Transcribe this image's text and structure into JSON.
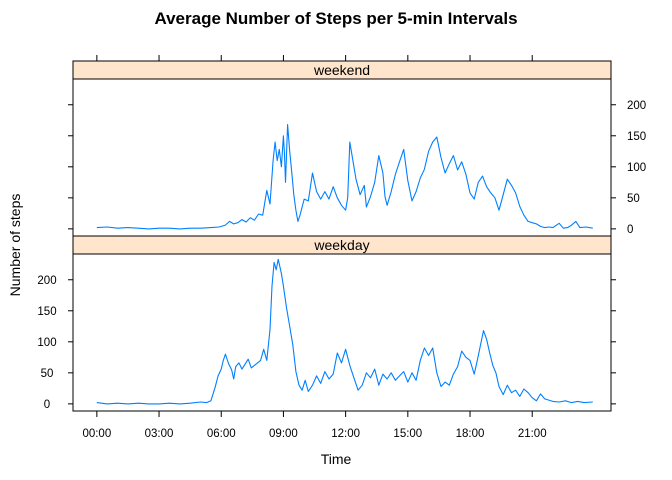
{
  "chart_data": {
    "type": "line",
    "title": "Average Number of Steps per 5-min Intervals",
    "xlabel": "Time",
    "ylabel": "Number of steps",
    "x_unit": "hours",
    "xlim": [
      -1.15,
      24.8
    ],
    "ylim": [
      -11.5,
      241.5
    ],
    "x_ticks": [
      0,
      3,
      6,
      9,
      12,
      15,
      18,
      21
    ],
    "x_tick_labels": [
      "00:00",
      "03:00",
      "06:00",
      "09:00",
      "12:00",
      "15:00",
      "18:00",
      "21:00"
    ],
    "y_ticks": [
      0,
      50,
      100,
      150,
      200
    ],
    "y_tick_labels": [
      "0",
      "50",
      "100",
      "150",
      "200"
    ],
    "line_color": "#0080ff",
    "strip_color": "#ffe5cc",
    "panels": [
      {
        "name": "weekend",
        "points": [
          [
            0.0,
            2
          ],
          [
            0.5,
            3
          ],
          [
            1.0,
            1
          ],
          [
            1.5,
            2
          ],
          [
            2.0,
            1
          ],
          [
            2.5,
            0
          ],
          [
            3.0,
            1
          ],
          [
            3.5,
            1
          ],
          [
            4.0,
            0
          ],
          [
            4.5,
            1
          ],
          [
            5.0,
            1
          ],
          [
            5.5,
            2
          ],
          [
            5.9,
            3
          ],
          [
            6.2,
            6
          ],
          [
            6.4,
            12
          ],
          [
            6.6,
            8
          ],
          [
            6.8,
            10
          ],
          [
            7.0,
            15
          ],
          [
            7.2,
            11
          ],
          [
            7.4,
            18
          ],
          [
            7.6,
            14
          ],
          [
            7.8,
            24
          ],
          [
            8.0,
            22
          ],
          [
            8.2,
            62
          ],
          [
            8.35,
            40
          ],
          [
            8.5,
            110
          ],
          [
            8.6,
            140
          ],
          [
            8.7,
            110
          ],
          [
            8.8,
            128
          ],
          [
            8.9,
            100
          ],
          [
            9.0,
            150
          ],
          [
            9.05,
            120
          ],
          [
            9.1,
            75
          ],
          [
            9.2,
            168
          ],
          [
            9.3,
            125
          ],
          [
            9.4,
            92
          ],
          [
            9.5,
            55
          ],
          [
            9.6,
            30
          ],
          [
            9.7,
            12
          ],
          [
            9.8,
            22
          ],
          [
            9.9,
            35
          ],
          [
            10.0,
            48
          ],
          [
            10.2,
            45
          ],
          [
            10.4,
            90
          ],
          [
            10.6,
            60
          ],
          [
            10.8,
            48
          ],
          [
            11.0,
            60
          ],
          [
            11.2,
            48
          ],
          [
            11.4,
            68
          ],
          [
            11.6,
            50
          ],
          [
            11.8,
            38
          ],
          [
            12.0,
            30
          ],
          [
            12.1,
            50
          ],
          [
            12.2,
            140
          ],
          [
            12.35,
            110
          ],
          [
            12.5,
            80
          ],
          [
            12.7,
            55
          ],
          [
            12.9,
            70
          ],
          [
            13.0,
            35
          ],
          [
            13.2,
            52
          ],
          [
            13.4,
            75
          ],
          [
            13.6,
            118
          ],
          [
            13.8,
            90
          ],
          [
            13.9,
            52
          ],
          [
            14.0,
            38
          ],
          [
            14.2,
            60
          ],
          [
            14.4,
            88
          ],
          [
            14.6,
            108
          ],
          [
            14.8,
            128
          ],
          [
            15.0,
            78
          ],
          [
            15.2,
            45
          ],
          [
            15.4,
            60
          ],
          [
            15.6,
            82
          ],
          [
            15.8,
            96
          ],
          [
            16.0,
            125
          ],
          [
            16.2,
            140
          ],
          [
            16.4,
            148
          ],
          [
            16.6,
            115
          ],
          [
            16.8,
            90
          ],
          [
            17.0,
            105
          ],
          [
            17.2,
            118
          ],
          [
            17.4,
            95
          ],
          [
            17.6,
            108
          ],
          [
            17.8,
            88
          ],
          [
            18.0,
            58
          ],
          [
            18.2,
            48
          ],
          [
            18.4,
            75
          ],
          [
            18.6,
            85
          ],
          [
            18.8,
            68
          ],
          [
            19.0,
            58
          ],
          [
            19.2,
            50
          ],
          [
            19.4,
            30
          ],
          [
            19.6,
            55
          ],
          [
            19.8,
            80
          ],
          [
            20.0,
            70
          ],
          [
            20.2,
            58
          ],
          [
            20.4,
            36
          ],
          [
            20.6,
            22
          ],
          [
            20.8,
            12
          ],
          [
            21.0,
            10
          ],
          [
            21.2,
            8
          ],
          [
            21.4,
            4
          ],
          [
            21.6,
            2
          ],
          [
            21.8,
            3
          ],
          [
            22.0,
            2
          ],
          [
            22.3,
            9
          ],
          [
            22.5,
            1
          ],
          [
            22.7,
            2
          ],
          [
            22.9,
            6
          ],
          [
            23.1,
            12
          ],
          [
            23.3,
            2
          ],
          [
            23.6,
            3
          ],
          [
            23.92,
            1
          ]
        ]
      },
      {
        "name": "weekday",
        "points": [
          [
            0.0,
            2
          ],
          [
            0.5,
            0
          ],
          [
            1.0,
            1
          ],
          [
            1.5,
            0
          ],
          [
            2.0,
            1
          ],
          [
            2.5,
            0
          ],
          [
            3.0,
            0
          ],
          [
            3.5,
            1
          ],
          [
            4.0,
            0
          ],
          [
            4.5,
            1
          ],
          [
            5.0,
            3
          ],
          [
            5.3,
            2
          ],
          [
            5.5,
            5
          ],
          [
            5.7,
            26
          ],
          [
            5.85,
            45
          ],
          [
            6.0,
            56
          ],
          [
            6.1,
            70
          ],
          [
            6.2,
            80
          ],
          [
            6.35,
            65
          ],
          [
            6.5,
            55
          ],
          [
            6.6,
            40
          ],
          [
            6.7,
            60
          ],
          [
            6.85,
            66
          ],
          [
            7.0,
            56
          ],
          [
            7.15,
            64
          ],
          [
            7.3,
            72
          ],
          [
            7.45,
            58
          ],
          [
            7.6,
            62
          ],
          [
            7.75,
            66
          ],
          [
            7.9,
            70
          ],
          [
            8.05,
            88
          ],
          [
            8.2,
            70
          ],
          [
            8.35,
            120
          ],
          [
            8.45,
            190
          ],
          [
            8.55,
            228
          ],
          [
            8.65,
            216
          ],
          [
            8.75,
            233
          ],
          [
            8.9,
            210
          ],
          [
            9.0,
            190
          ],
          [
            9.15,
            155
          ],
          [
            9.3,
            125
          ],
          [
            9.45,
            95
          ],
          [
            9.6,
            52
          ],
          [
            9.75,
            30
          ],
          [
            9.9,
            22
          ],
          [
            10.05,
            38
          ],
          [
            10.2,
            20
          ],
          [
            10.4,
            30
          ],
          [
            10.6,
            45
          ],
          [
            10.8,
            33
          ],
          [
            11.0,
            52
          ],
          [
            11.2,
            40
          ],
          [
            11.4,
            48
          ],
          [
            11.6,
            82
          ],
          [
            11.8,
            66
          ],
          [
            12.0,
            88
          ],
          [
            12.2,
            62
          ],
          [
            12.4,
            42
          ],
          [
            12.6,
            22
          ],
          [
            12.8,
            30
          ],
          [
            13.0,
            50
          ],
          [
            13.2,
            42
          ],
          [
            13.4,
            56
          ],
          [
            13.6,
            30
          ],
          [
            13.8,
            48
          ],
          [
            14.0,
            40
          ],
          [
            14.2,
            50
          ],
          [
            14.4,
            38
          ],
          [
            14.6,
            45
          ],
          [
            14.8,
            52
          ],
          [
            15.0,
            35
          ],
          [
            15.2,
            50
          ],
          [
            15.4,
            38
          ],
          [
            15.6,
            70
          ],
          [
            15.8,
            90
          ],
          [
            16.0,
            78
          ],
          [
            16.2,
            90
          ],
          [
            16.4,
            50
          ],
          [
            16.6,
            28
          ],
          [
            16.8,
            35
          ],
          [
            17.0,
            30
          ],
          [
            17.2,
            48
          ],
          [
            17.4,
            60
          ],
          [
            17.6,
            85
          ],
          [
            17.8,
            75
          ],
          [
            18.0,
            70
          ],
          [
            18.2,
            48
          ],
          [
            18.35,
            70
          ],
          [
            18.5,
            94
          ],
          [
            18.65,
            118
          ],
          [
            18.8,
            104
          ],
          [
            18.95,
            82
          ],
          [
            19.1,
            62
          ],
          [
            19.25,
            50
          ],
          [
            19.4,
            28
          ],
          [
            19.6,
            15
          ],
          [
            19.8,
            30
          ],
          [
            20.0,
            18
          ],
          [
            20.2,
            22
          ],
          [
            20.4,
            12
          ],
          [
            20.6,
            24
          ],
          [
            20.8,
            18
          ],
          [
            21.0,
            10
          ],
          [
            21.2,
            5
          ],
          [
            21.4,
            16
          ],
          [
            21.6,
            8
          ],
          [
            21.8,
            6
          ],
          [
            22.0,
            4
          ],
          [
            22.3,
            3
          ],
          [
            22.6,
            5
          ],
          [
            22.9,
            2
          ],
          [
            23.2,
            4
          ],
          [
            23.5,
            2
          ],
          [
            23.92,
            3
          ]
        ]
      }
    ]
  }
}
